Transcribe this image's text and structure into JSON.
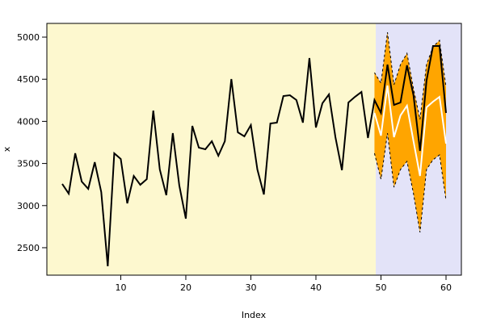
{
  "chart_data": {
    "type": "forecast",
    "xlabel": "Index",
    "ylabel": "x",
    "xlim": [
      -1.36,
      62.36
    ],
    "ylim": [
      2174,
      5163
    ],
    "xticks": [
      10,
      20,
      30,
      40,
      50,
      60
    ],
    "yticks": [
      2500,
      3000,
      3500,
      4000,
      4500,
      5000
    ],
    "history_background": "#fdf8cf",
    "forecast_background": "#e3e3f8",
    "forecast_split": 49.2,
    "actual": {
      "color": "#000000",
      "x": [
        1,
        2,
        3,
        4,
        5,
        6,
        7,
        8,
        9,
        10,
        11,
        12,
        13,
        14,
        15,
        16,
        17,
        18,
        19,
        20,
        21,
        22,
        23,
        24,
        25,
        26,
        27,
        28,
        29,
        30,
        31,
        32,
        33,
        34,
        35,
        36,
        37,
        38,
        39,
        40,
        41,
        42,
        43,
        44,
        45,
        46,
        47,
        48,
        49,
        50,
        51,
        52,
        53,
        54,
        55,
        56,
        57,
        58,
        59,
        60
      ],
      "values": [
        3257,
        3142,
        3621,
        3285,
        3199,
        3515,
        3161,
        2280,
        3621,
        3554,
        3027,
        3352,
        3247,
        3314,
        4128,
        3429,
        3123,
        3860,
        3238,
        2845,
        3946,
        3688,
        3669,
        3764,
        3592,
        3764,
        4502,
        3870,
        3822,
        3956,
        3429,
        3132,
        3975,
        3985,
        4301,
        4310,
        4253,
        3985,
        4751,
        3927,
        4215,
        4320,
        3812,
        3420,
        4224,
        4291,
        4349,
        3803,
        4253,
        4100,
        4674,
        4195,
        4224,
        4665,
        4310,
        3649,
        4483,
        4895,
        4895,
        4100
      ]
    },
    "forecast": {
      "color": "#ffffff",
      "band_color": "#ffa500",
      "x": [
        49,
        50,
        51,
        52,
        53,
        54,
        55,
        56,
        57,
        58,
        59,
        60
      ],
      "values": [
        4100,
        3830,
        4425,
        3812,
        4070,
        4186,
        3765,
        3352,
        4166,
        4234,
        4291,
        3736
      ],
      "upper": [
        4579,
        4454,
        5057,
        4435,
        4674,
        4808,
        4387,
        4023,
        4674,
        4885,
        4962,
        4406
      ],
      "lower": [
        3621,
        3314,
        3860,
        3218,
        3429,
        3525,
        3142,
        2682,
        3429,
        3544,
        3602,
        3065
      ]
    }
  }
}
